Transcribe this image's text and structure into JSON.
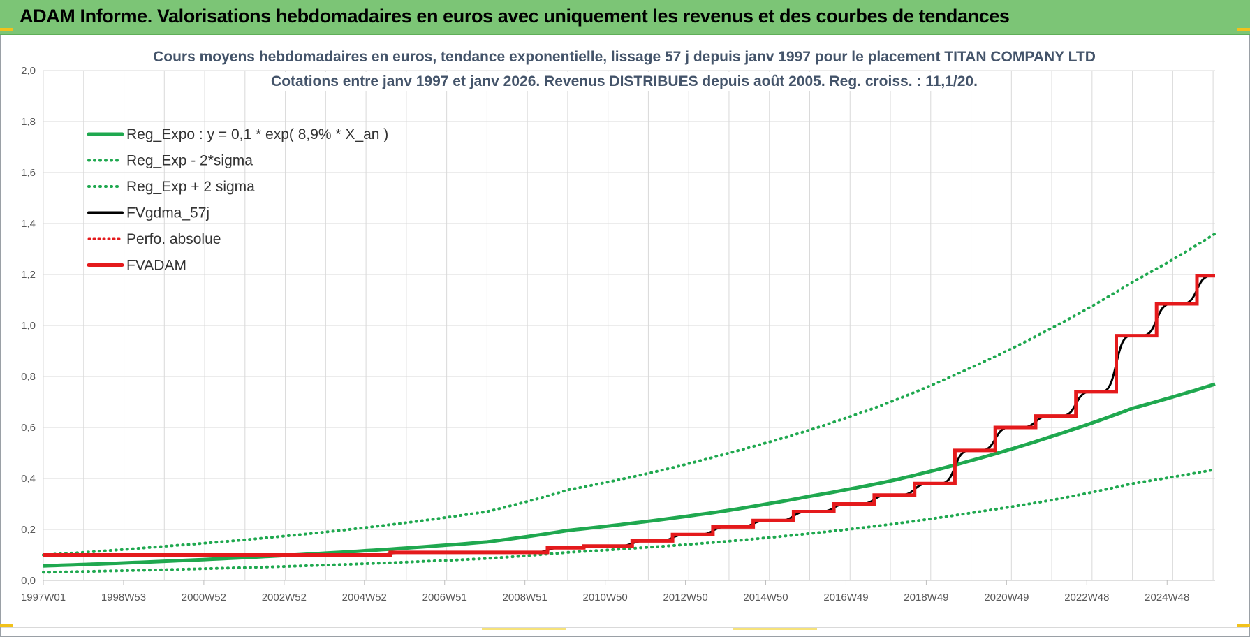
{
  "page": {
    "banner_title": "ADAM Informe. Valorisations hebdomadaires en euros avec uniquement les revenus et des courbes de tendances"
  },
  "colors": {
    "banner_bg": "#7cc576",
    "reg_expo": "#1fa84f",
    "bands": "#1fa84f",
    "fvgdma": "#000000",
    "perfo": "#e41a1c",
    "fvadam": "#e41a1c",
    "grid": "#d9d9d9"
  },
  "chart_data": {
    "type": "line",
    "title_lines": [
      "Cours moyens hebdomadaires en euros, tendance exponentielle, lissage 57 j depuis janv 1997 pour le placement TITAN COMPANY LTD",
      "Cotations entre janv 1997 et janv 2026. Revenus DISTRIBUES depuis août 2005. Reg. croiss. : 11,1/20."
    ],
    "x_tick_labels": [
      "1997W01",
      "1998W53",
      "2000W52",
      "2002W52",
      "2004W52",
      "2006W51",
      "2008W51",
      "2010W50",
      "2012W50",
      "2014W50",
      "2016W49",
      "2018W49",
      "2020W49",
      "2022W48",
      "2024W48"
    ],
    "x_range_years": [
      1997.0,
      2026.05
    ],
    "y_tick_labels": [
      "0,0",
      "0,2",
      "0,4",
      "0,6",
      "0,8",
      "1,0",
      "1,2",
      "1,4",
      "1,6",
      "1,8",
      "2,0"
    ],
    "y_range": [
      0,
      2.0
    ],
    "grid": true,
    "legend_position": "top-left",
    "legend": [
      {
        "key": "reg_expo",
        "label": "Reg_Expo : y = 0,1 * exp( 8,9% *  X_an )",
        "style": "solid"
      },
      {
        "key": "reg_minus",
        "label": "Reg_Exp - 2*sigma",
        "style": "dotted"
      },
      {
        "key": "reg_plus",
        "label": "Reg_Exp + 2 sigma",
        "style": "dotted"
      },
      {
        "key": "fvgdma",
        "label": "FVgdma_57j",
        "style": "solid"
      },
      {
        "key": "perfo",
        "label": "Perfo. absolue",
        "style": "dotted"
      },
      {
        "key": "fvadam",
        "label": "FVADAM",
        "style": "solid"
      }
    ],
    "series": [
      {
        "key": "reg_expo",
        "name": "Reg_Expo : y = 0,1 * exp( 8,9% *  X_an )",
        "x": [
          1997.0,
          2000.0,
          2004.0,
          2008.0,
          2010.0,
          2012.0,
          2014.0,
          2016.0,
          2018.0,
          2020.0,
          2022.0,
          2024.0,
          2026.05
        ],
        "y": [
          0.057,
          0.075,
          0.107,
          0.151,
          0.196,
          0.232,
          0.275,
          0.33,
          0.39,
          0.47,
          0.565,
          0.675,
          0.77
        ]
      },
      {
        "key": "reg_plus",
        "name": "Reg_Exp + 2 sigma",
        "x": [
          1997.0,
          2000.0,
          2004.0,
          2008.0,
          2010.0,
          2012.0,
          2014.0,
          2016.0,
          2018.0,
          2020.0,
          2022.0,
          2024.0,
          2026.05
        ],
        "y": [
          0.1,
          0.134,
          0.19,
          0.27,
          0.355,
          0.42,
          0.5,
          0.59,
          0.7,
          0.835,
          0.99,
          1.17,
          1.36
        ]
      },
      {
        "key": "reg_minus",
        "name": "Reg_Exp - 2*sigma",
        "x": [
          1997.0,
          2000.0,
          2004.0,
          2008.0,
          2010.0,
          2012.0,
          2014.0,
          2016.0,
          2018.0,
          2020.0,
          2022.0,
          2024.0,
          2026.05
        ],
        "y": [
          0.032,
          0.042,
          0.06,
          0.086,
          0.11,
          0.13,
          0.154,
          0.184,
          0.22,
          0.265,
          0.315,
          0.38,
          0.435
        ]
      },
      {
        "key": "fvadam",
        "name": "FVADAM",
        "steps": [
          {
            "from": 1997.0,
            "to": 2005.6,
            "y": 0.1
          },
          {
            "from": 2005.6,
            "to": 2009.5,
            "y": 0.11
          },
          {
            "from": 2009.5,
            "to": 2010.4,
            "y": 0.128
          },
          {
            "from": 2010.4,
            "to": 2011.6,
            "y": 0.135
          },
          {
            "from": 2011.6,
            "to": 2012.6,
            "y": 0.155
          },
          {
            "from": 2012.6,
            "to": 2013.6,
            "y": 0.18
          },
          {
            "from": 2013.6,
            "to": 2014.6,
            "y": 0.21
          },
          {
            "from": 2014.6,
            "to": 2015.6,
            "y": 0.235
          },
          {
            "from": 2015.6,
            "to": 2016.6,
            "y": 0.27
          },
          {
            "from": 2016.6,
            "to": 2017.6,
            "y": 0.3
          },
          {
            "from": 2017.6,
            "to": 2018.6,
            "y": 0.335
          },
          {
            "from": 2018.6,
            "to": 2019.6,
            "y": 0.38
          },
          {
            "from": 2019.6,
            "to": 2020.6,
            "y": 0.51
          },
          {
            "from": 2020.6,
            "to": 2021.6,
            "y": 0.6
          },
          {
            "from": 2021.6,
            "to": 2022.6,
            "y": 0.645
          },
          {
            "from": 2022.6,
            "to": 2023.6,
            "y": 0.74
          },
          {
            "from": 2023.6,
            "to": 2024.6,
            "y": 0.96
          },
          {
            "from": 2024.6,
            "to": 2025.6,
            "y": 1.085
          },
          {
            "from": 2025.6,
            "to": 2026.05,
            "y": 1.195
          }
        ]
      },
      {
        "key": "fvgdma",
        "name": "FVgdma_57j",
        "smoothed_of": "fvadam"
      },
      {
        "key": "perfo",
        "name": "Perfo. absolue",
        "same_as": "fvadam"
      }
    ]
  }
}
